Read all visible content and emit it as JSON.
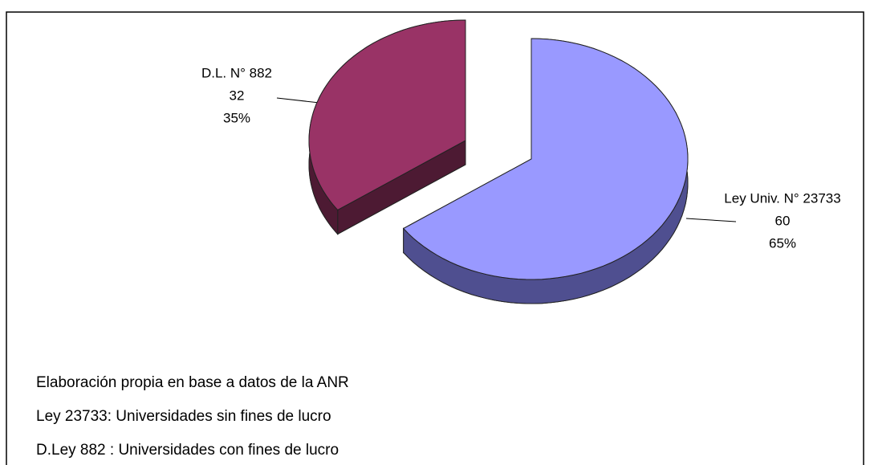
{
  "chart_data": {
    "type": "pie3d",
    "categories": [
      "Ley Univ. N° 23733",
      "D.L. N° 882"
    ],
    "values": [
      60,
      32
    ],
    "percent_labels": [
      "65%",
      "35%"
    ],
    "colors": [
      "#9999ff",
      "#993366"
    ],
    "side_colors": [
      "#4f4f90",
      "#4d1a33"
    ],
    "notes": [
      "Elaboración propia en base a datos de la ANR",
      "Ley 23733: Universidades sin fines de lucro",
      "D.Ley 882 : Universidades con fines de lucro"
    ]
  }
}
